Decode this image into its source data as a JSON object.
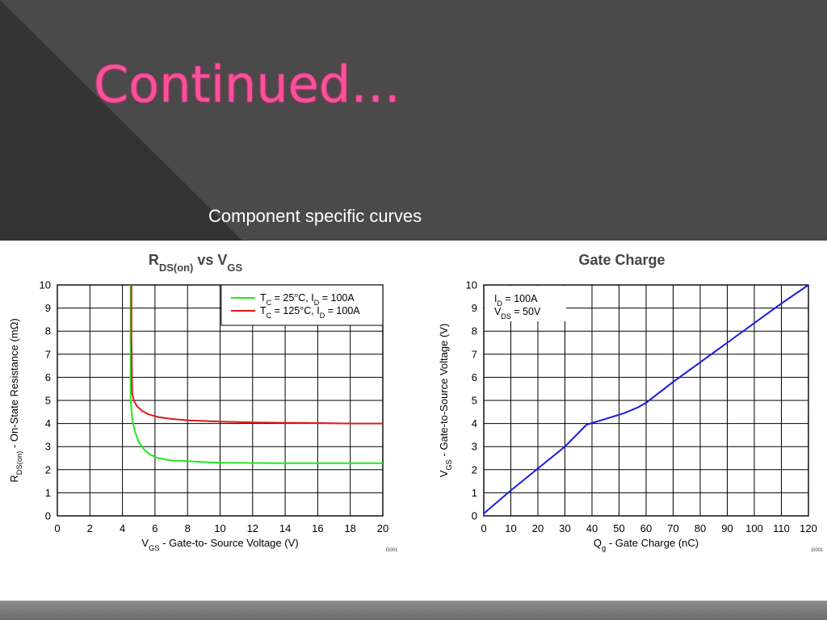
{
  "slide": {
    "title": "Continued…",
    "subtitle": "Component specific curves"
  },
  "chart_data": [
    {
      "type": "line",
      "title": "RDS(on) vs VGS",
      "xlabel": "VGS - Gate-to- Source Voltage (V)",
      "ylabel": "RDS(on) - On-State Resistance (mΩ)",
      "xlim": [
        0,
        20
      ],
      "ylim": [
        0,
        10
      ],
      "xticks": [
        0,
        2,
        4,
        6,
        8,
        10,
        12,
        14,
        16,
        18,
        20
      ],
      "yticks": [
        0,
        1,
        2,
        3,
        4,
        5,
        6,
        7,
        8,
        9,
        10
      ],
      "grid": true,
      "legend_position": "top-right",
      "figure_id": "G001",
      "series": [
        {
          "name": "TC = 25°C, ID = 100A",
          "color": "#22e622",
          "x": [
            4.5,
            4.5,
            4.5,
            4.55,
            4.6,
            4.75,
            5.0,
            5.3,
            5.7,
            6.2,
            7.0,
            8.0,
            9.0,
            10.0,
            12.0,
            14.0,
            16.0,
            18.0,
            20.0
          ],
          "y": [
            10.0,
            8.0,
            5.1,
            4.6,
            4.2,
            3.7,
            3.2,
            2.9,
            2.65,
            2.5,
            2.4,
            2.37,
            2.33,
            2.3,
            2.29,
            2.28,
            2.28,
            2.28,
            2.28
          ]
        },
        {
          "name": "TC = 125°C, ID = 100A",
          "color": "#e01a1a",
          "x": [
            4.55,
            4.55,
            4.6,
            4.7,
            4.9,
            5.2,
            5.6,
            6.2,
            7.0,
            8.0,
            10.0,
            12.0,
            14.0,
            16.0,
            18.0,
            20.0
          ],
          "y": [
            10.0,
            7.9,
            5.3,
            5.0,
            4.75,
            4.55,
            4.4,
            4.28,
            4.2,
            4.14,
            4.08,
            4.05,
            4.03,
            4.02,
            4.0,
            4.0
          ]
        }
      ]
    },
    {
      "type": "line",
      "title": "Gate Charge",
      "xlabel": "Qg - Gate Charge (nC)",
      "ylabel": "VGS - Gate-to-Source Voltage (V)",
      "xlim": [
        0,
        120
      ],
      "ylim": [
        0,
        10
      ],
      "xticks": [
        0,
        10,
        20,
        30,
        40,
        50,
        60,
        70,
        80,
        90,
        100,
        110,
        120
      ],
      "yticks": [
        0,
        1,
        2,
        3,
        4,
        5,
        6,
        7,
        8,
        9,
        10
      ],
      "grid": true,
      "annotations": [
        "ID = 100A",
        "VDS = 50V"
      ],
      "figure_id": "G001",
      "series": [
        {
          "color": "#1a1ae0",
          "x": [
            0,
            10,
            20,
            30,
            38,
            45,
            52,
            57,
            60,
            70,
            80,
            90,
            100,
            110,
            120
          ],
          "y": [
            0.1,
            1.1,
            2.05,
            3.0,
            3.95,
            4.2,
            4.45,
            4.7,
            4.9,
            5.8,
            6.65,
            7.5,
            8.35,
            9.2,
            10.0
          ]
        }
      ]
    }
  ]
}
